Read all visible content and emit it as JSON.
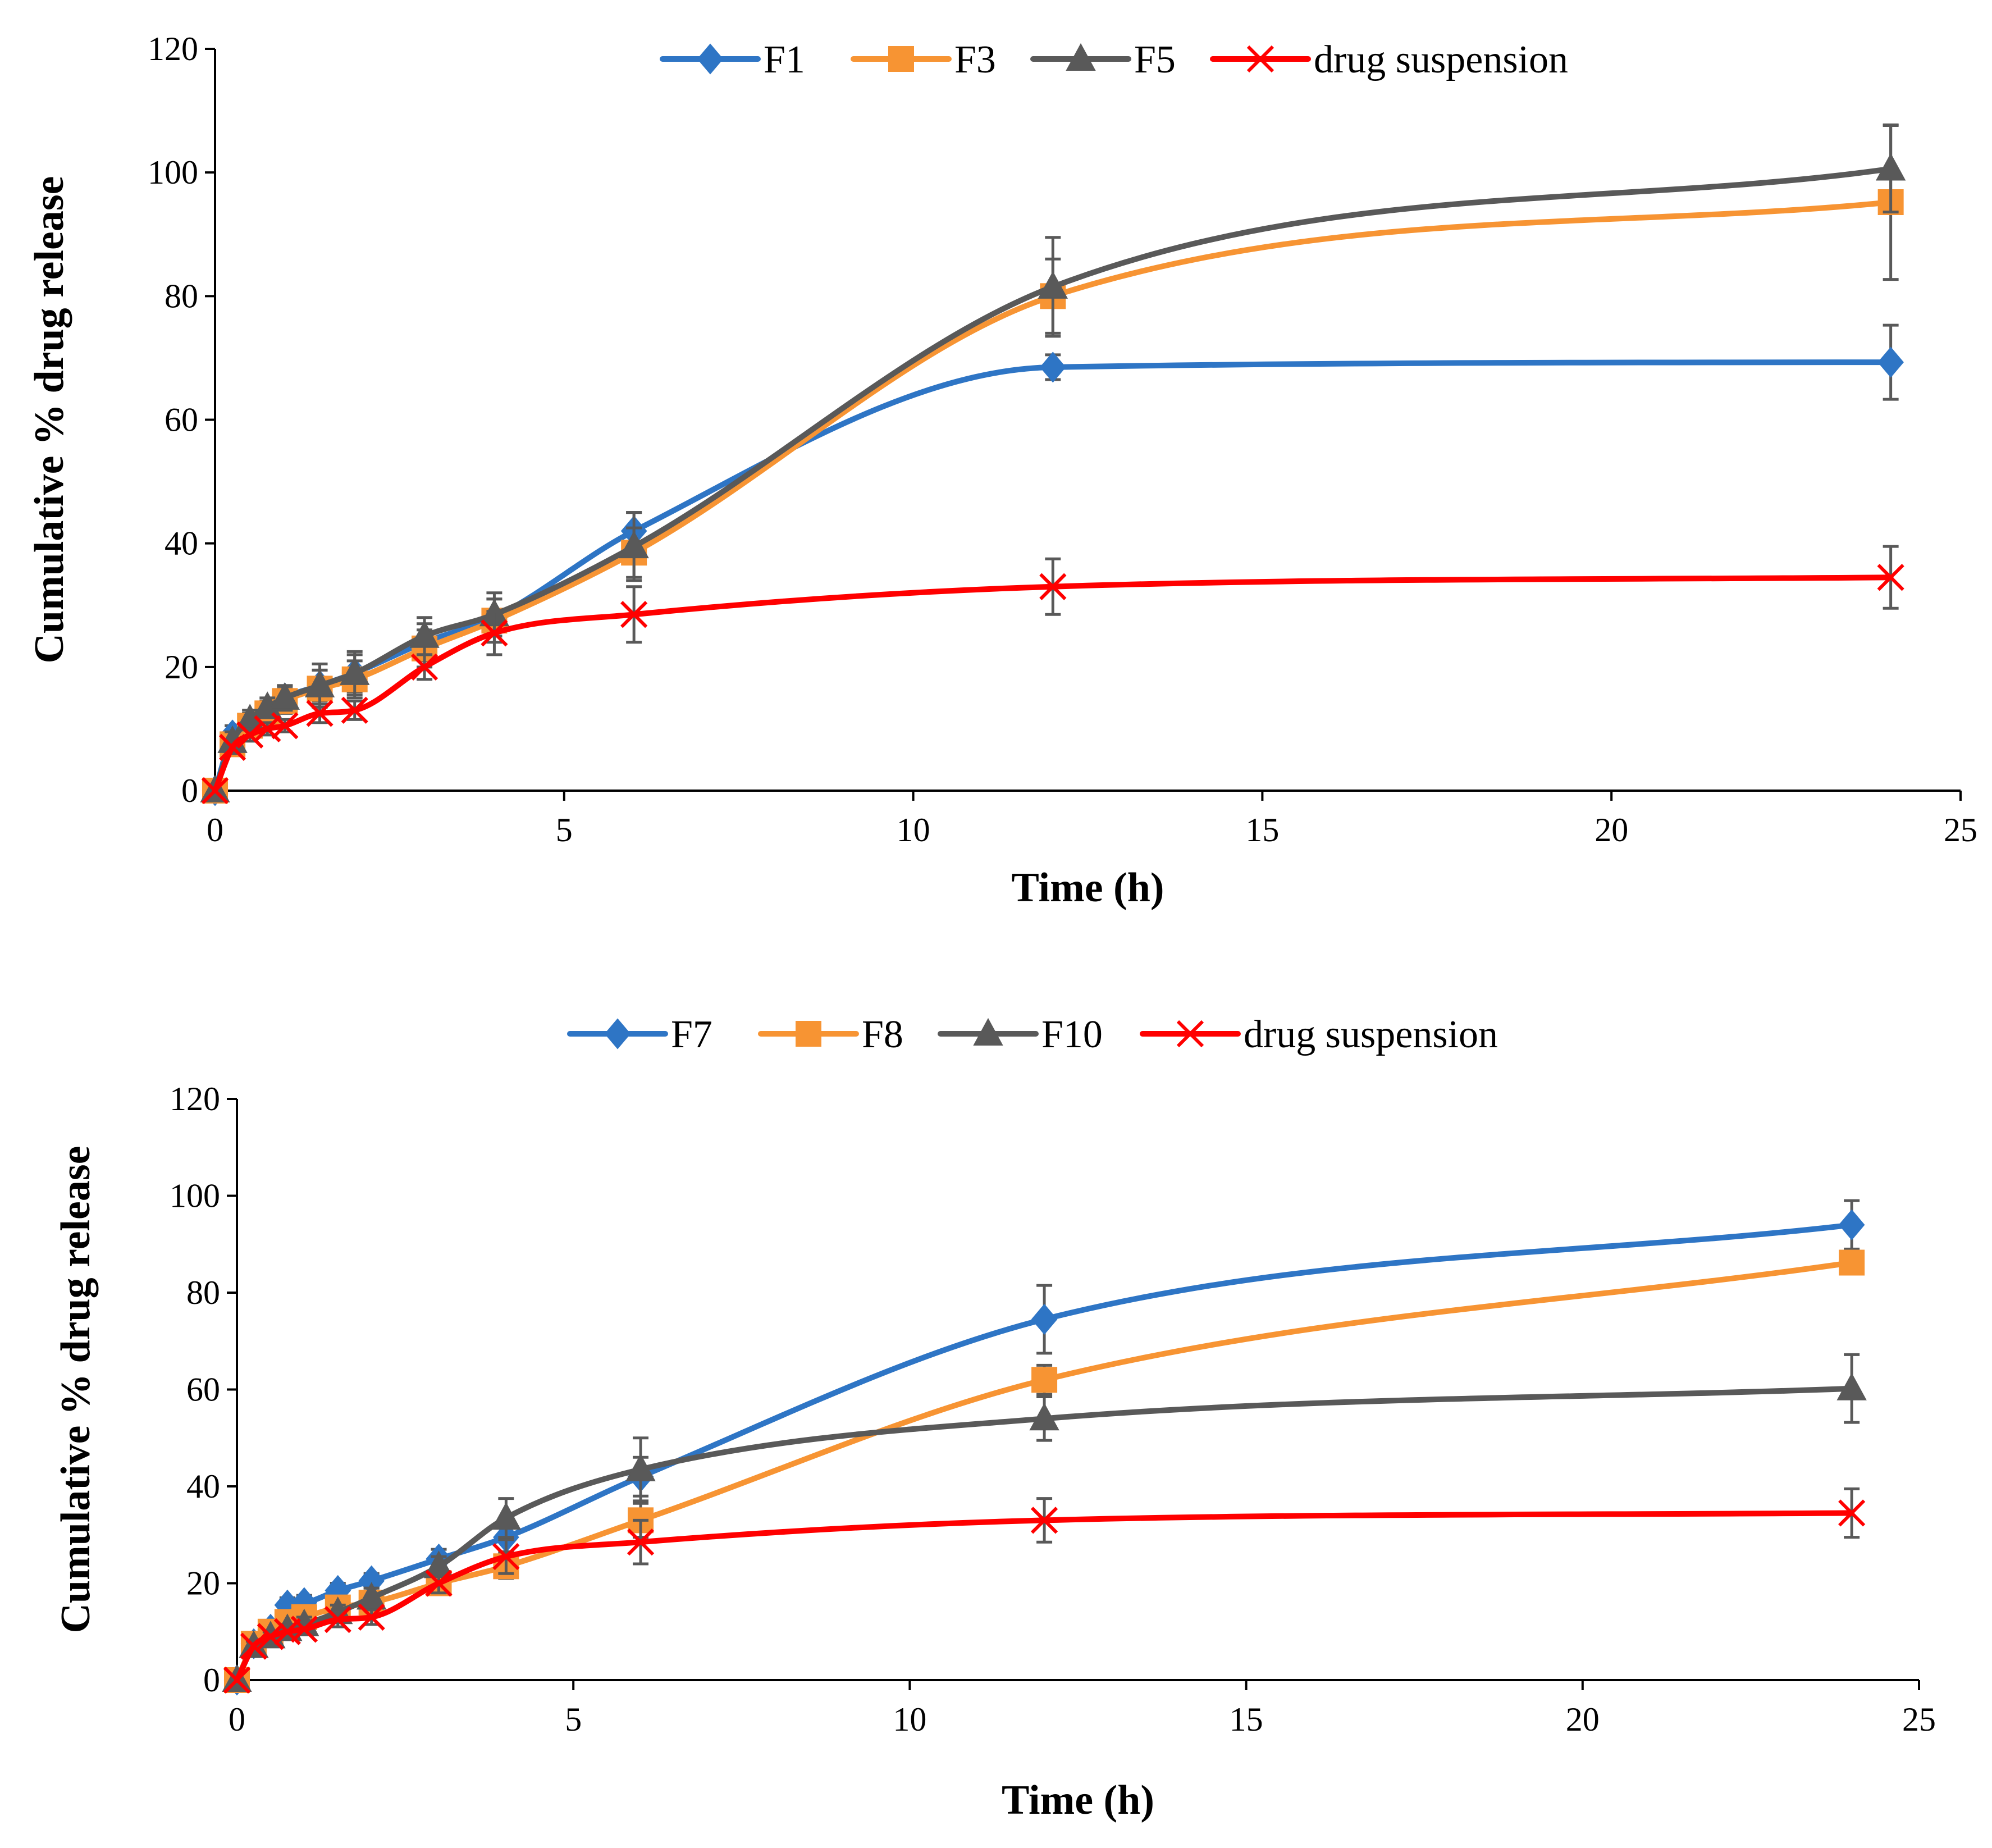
{
  "chart_data": [
    {
      "type": "line",
      "title": "",
      "xlabel": "Time (h)",
      "ylabel": "Cumulative % drug release",
      "xlim": [
        0,
        25
      ],
      "ylim": [
        0,
        120
      ],
      "xticks": [
        0,
        5,
        10,
        15,
        20,
        25
      ],
      "yticks": [
        0,
        20,
        40,
        60,
        80,
        100,
        120
      ],
      "grid": false,
      "legend_position": "top",
      "series": [
        {
          "name": "F1",
          "color": "#2E75C5",
          "marker": "diamond",
          "x": [
            0,
            0.25,
            0.5,
            0.75,
            1,
            1.5,
            2,
            3,
            4,
            6,
            12,
            24
          ],
          "y": [
            0,
            9,
            11,
            13,
            15,
            17,
            19,
            24,
            28,
            42,
            68.5,
            69.3
          ],
          "err": [
            0,
            1.5,
            1.5,
            1.5,
            2,
            2.5,
            3,
            3,
            3,
            3,
            2,
            6
          ]
        },
        {
          "name": "F3",
          "color": "#F79433",
          "marker": "square",
          "x": [
            0,
            0.25,
            0.5,
            0.75,
            1,
            1.5,
            2,
            3,
            4,
            6,
            12,
            24
          ],
          "y": [
            0,
            7.5,
            10.5,
            12.5,
            14.5,
            16.5,
            18,
            23,
            27.5,
            38.5,
            80,
            95.2
          ],
          "err": [
            0,
            1.5,
            1.5,
            1.5,
            2,
            3,
            3,
            3,
            3.5,
            4,
            6,
            12.5
          ]
        },
        {
          "name": "F5",
          "color": "#595959",
          "marker": "triangle",
          "x": [
            0,
            0.25,
            0.5,
            0.75,
            1,
            1.5,
            2,
            3,
            4,
            6,
            12,
            24
          ],
          "y": [
            0,
            8,
            11.5,
            13.5,
            15,
            17,
            19,
            25,
            28.5,
            39.5,
            81.5,
            100.6
          ],
          "err": [
            0,
            1.5,
            1.5,
            1.5,
            2,
            3.5,
            3.5,
            3,
            3.5,
            5.5,
            8,
            7
          ]
        },
        {
          "name": "drug suspension",
          "color": "#FF0000",
          "marker": "cross",
          "x": [
            0,
            0.25,
            0.5,
            0.75,
            1,
            1.5,
            2,
            3,
            4,
            6,
            12,
            24
          ],
          "y": [
            0,
            7,
            9,
            10,
            10.5,
            12.5,
            13,
            20,
            25.5,
            28.5,
            33,
            34.5
          ],
          "err": [
            0,
            1,
            1,
            1,
            1,
            1.5,
            1.5,
            2,
            3.5,
            4.5,
            4.5,
            5
          ]
        }
      ]
    },
    {
      "type": "line",
      "title": "",
      "xlabel": "Time (h)",
      "ylabel": "Cumulative % drug release",
      "xlim": [
        0,
        25
      ],
      "ylim": [
        0,
        120
      ],
      "xticks": [
        0,
        5,
        10,
        15,
        20,
        25
      ],
      "yticks": [
        0,
        20,
        40,
        60,
        80,
        100,
        120
      ],
      "grid": false,
      "legend_position": "top",
      "series": [
        {
          "name": "F7",
          "color": "#2E75C5",
          "marker": "diamond",
          "x": [
            0,
            0.25,
            0.5,
            0.75,
            1,
            1.5,
            2,
            3,
            4,
            6,
            12,
            24
          ],
          "y": [
            0,
            7.5,
            10.5,
            15.5,
            16,
            18.5,
            20.5,
            25,
            29.5,
            42,
            74.5,
            94
          ],
          "err": [
            0,
            1,
            1.5,
            1.5,
            1.5,
            1.5,
            1.5,
            2,
            3,
            4,
            7,
            5
          ]
        },
        {
          "name": "F8",
          "color": "#F79433",
          "marker": "square",
          "x": [
            0,
            0.25,
            0.5,
            0.75,
            1,
            1.5,
            2,
            3,
            4,
            6,
            12,
            24
          ],
          "y": [
            0,
            7.5,
            10,
            12,
            13,
            15,
            16,
            20,
            23.5,
            33,
            62,
            86.2
          ],
          "err": [
            0,
            1,
            1.5,
            1.5,
            1.5,
            1.5,
            1.5,
            2,
            2.5,
            3.5,
            3,
            2
          ]
        },
        {
          "name": "F10",
          "color": "#595959",
          "marker": "triangle",
          "x": [
            0,
            0.25,
            0.5,
            0.75,
            1,
            1.5,
            2,
            3,
            4,
            6,
            12,
            24
          ],
          "y": [
            0,
            7,
            9,
            10.5,
            11.5,
            14,
            17,
            23.5,
            33.5,
            43.5,
            54,
            60.2
          ],
          "err": [
            0,
            1,
            1,
            1,
            1.5,
            1.5,
            2,
            2,
            4,
            6.5,
            4.5,
            7
          ]
        },
        {
          "name": "drug suspension",
          "color": "#FF0000",
          "marker": "cross",
          "x": [
            0,
            0.25,
            0.5,
            0.75,
            1,
            1.5,
            2,
            3,
            4,
            6,
            12,
            24
          ],
          "y": [
            0,
            7,
            9,
            10,
            10.5,
            12.5,
            13,
            20,
            25.5,
            28.5,
            33,
            34.5
          ],
          "err": [
            0,
            1,
            1,
            1,
            1,
            1.5,
            1.5,
            2,
            3.5,
            4.5,
            4.5,
            5
          ]
        }
      ]
    }
  ]
}
